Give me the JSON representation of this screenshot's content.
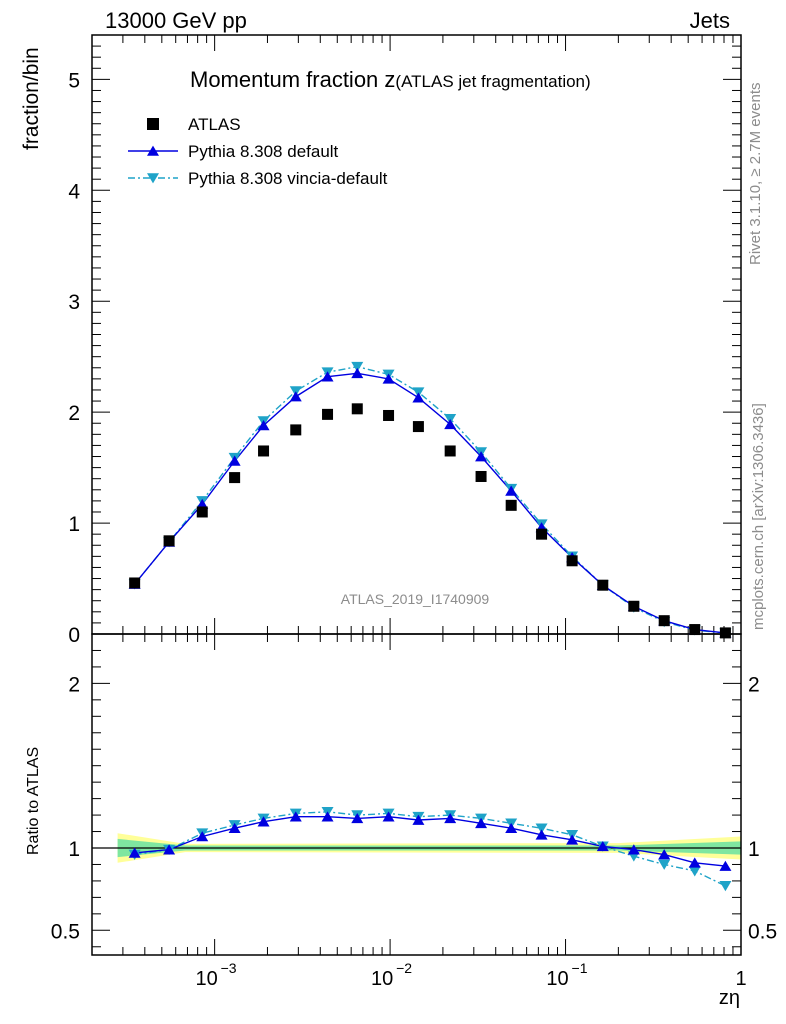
{
  "header": {
    "energy_label": "13000 GeV pp",
    "process_label": "Jets"
  },
  "side_labels": {
    "rivet": "Rivet 3.1.10, ≥ 2.7M events",
    "source": "mcplots.cern.ch [arXiv:1306.3436]"
  },
  "chart_data": [
    {
      "type": "scatter",
      "panel": "main",
      "title_main": "Momentum fraction z",
      "title_sub": "(ATLAS jet fragmentation)",
      "ylabel": "fraction/bin",
      "analysis_label": "ATLAS_2019_I1740909",
      "xscale": "log",
      "xlim": [
        0.0002,
        1
      ],
      "ylim": [
        0,
        5.4
      ],
      "y_ticks": [
        "0",
        "1",
        "2",
        "3",
        "4",
        "5"
      ],
      "legend_position": "top-left",
      "x": [
        0.00035,
        0.00055,
        0.00085,
        0.0013,
        0.0019,
        0.0029,
        0.0044,
        0.0065,
        0.0098,
        0.0145,
        0.022,
        0.033,
        0.049,
        0.073,
        0.109,
        0.163,
        0.245,
        0.365,
        0.545,
        0.815
      ],
      "series": [
        {
          "name": "ATLAS",
          "style": "data",
          "values": [
            0.46,
            0.84,
            1.1,
            1.41,
            1.65,
            1.84,
            1.98,
            2.03,
            1.97,
            1.87,
            1.65,
            1.42,
            1.16,
            0.9,
            0.66,
            0.44,
            0.25,
            0.12,
            0.04,
            0.01
          ]
        },
        {
          "name": "Pythia 8.308 default",
          "style": "solid",
          "values": [
            0.45,
            0.83,
            1.17,
            1.56,
            1.88,
            2.14,
            2.32,
            2.35,
            2.3,
            2.13,
            1.89,
            1.6,
            1.29,
            0.96,
            0.69,
            0.44,
            0.25,
            0.12,
            0.04,
            0.01
          ]
        },
        {
          "name": "Pythia 8.308 vincia-default",
          "style": "dashdot",
          "values": [
            0.45,
            0.83,
            1.2,
            1.59,
            1.92,
            2.19,
            2.36,
            2.41,
            2.34,
            2.18,
            1.94,
            1.64,
            1.31,
            0.99,
            0.7,
            0.44,
            0.24,
            0.11,
            0.035,
            0.008
          ]
        }
      ]
    },
    {
      "type": "scatter",
      "panel": "ratio",
      "ylabel": "Ratio to ATLAS",
      "xlabel": "zη",
      "xscale": "log",
      "xlim": [
        0.0002,
        1
      ],
      "ylim": [
        0.35,
        2.3
      ],
      "y_ticks": [
        "0.5",
        "1",
        "2"
      ],
      "x_ticks": [
        "10",
        "10",
        "10",
        "1"
      ],
      "x_tick_exponents": [
        "−3",
        "−2",
        "−1",
        ""
      ],
      "x": [
        0.00035,
        0.00055,
        0.00085,
        0.0013,
        0.0019,
        0.0029,
        0.0044,
        0.0065,
        0.0098,
        0.0145,
        0.022,
        0.033,
        0.049,
        0.073,
        0.109,
        0.163,
        0.245,
        0.365,
        0.545,
        0.815
      ],
      "series": [
        {
          "name": "Pythia 8.308 default",
          "style": "solid",
          "values": [
            0.97,
            0.99,
            1.07,
            1.12,
            1.16,
            1.19,
            1.19,
            1.18,
            1.19,
            1.17,
            1.18,
            1.15,
            1.12,
            1.08,
            1.05,
            1.01,
            0.99,
            0.96,
            0.91,
            0.89
          ]
        },
        {
          "name": "Pythia 8.308 vincia-default",
          "style": "dashdot",
          "values": [
            0.96,
            0.99,
            1.09,
            1.14,
            1.18,
            1.21,
            1.22,
            1.2,
            1.21,
            1.19,
            1.2,
            1.18,
            1.15,
            1.12,
            1.08,
            1.01,
            0.95,
            0.9,
            0.86,
            0.77
          ]
        }
      ],
      "uncertainty_band": {
        "x": [
          0.00028,
          0.00068,
          0.2,
          1
        ],
        "inner_half_width": [
          0.055,
          0.015,
          0.015,
          0.04
        ],
        "outer_half_width": [
          0.09,
          0.025,
          0.03,
          0.07
        ]
      }
    }
  ],
  "colors": {
    "data": "#000000",
    "default": "#0000e0",
    "vincia": "#1fa3c8",
    "band_inner": "#7fe6a0",
    "band_outer": "#ffff99",
    "side_text": "#8c8c8c"
  }
}
